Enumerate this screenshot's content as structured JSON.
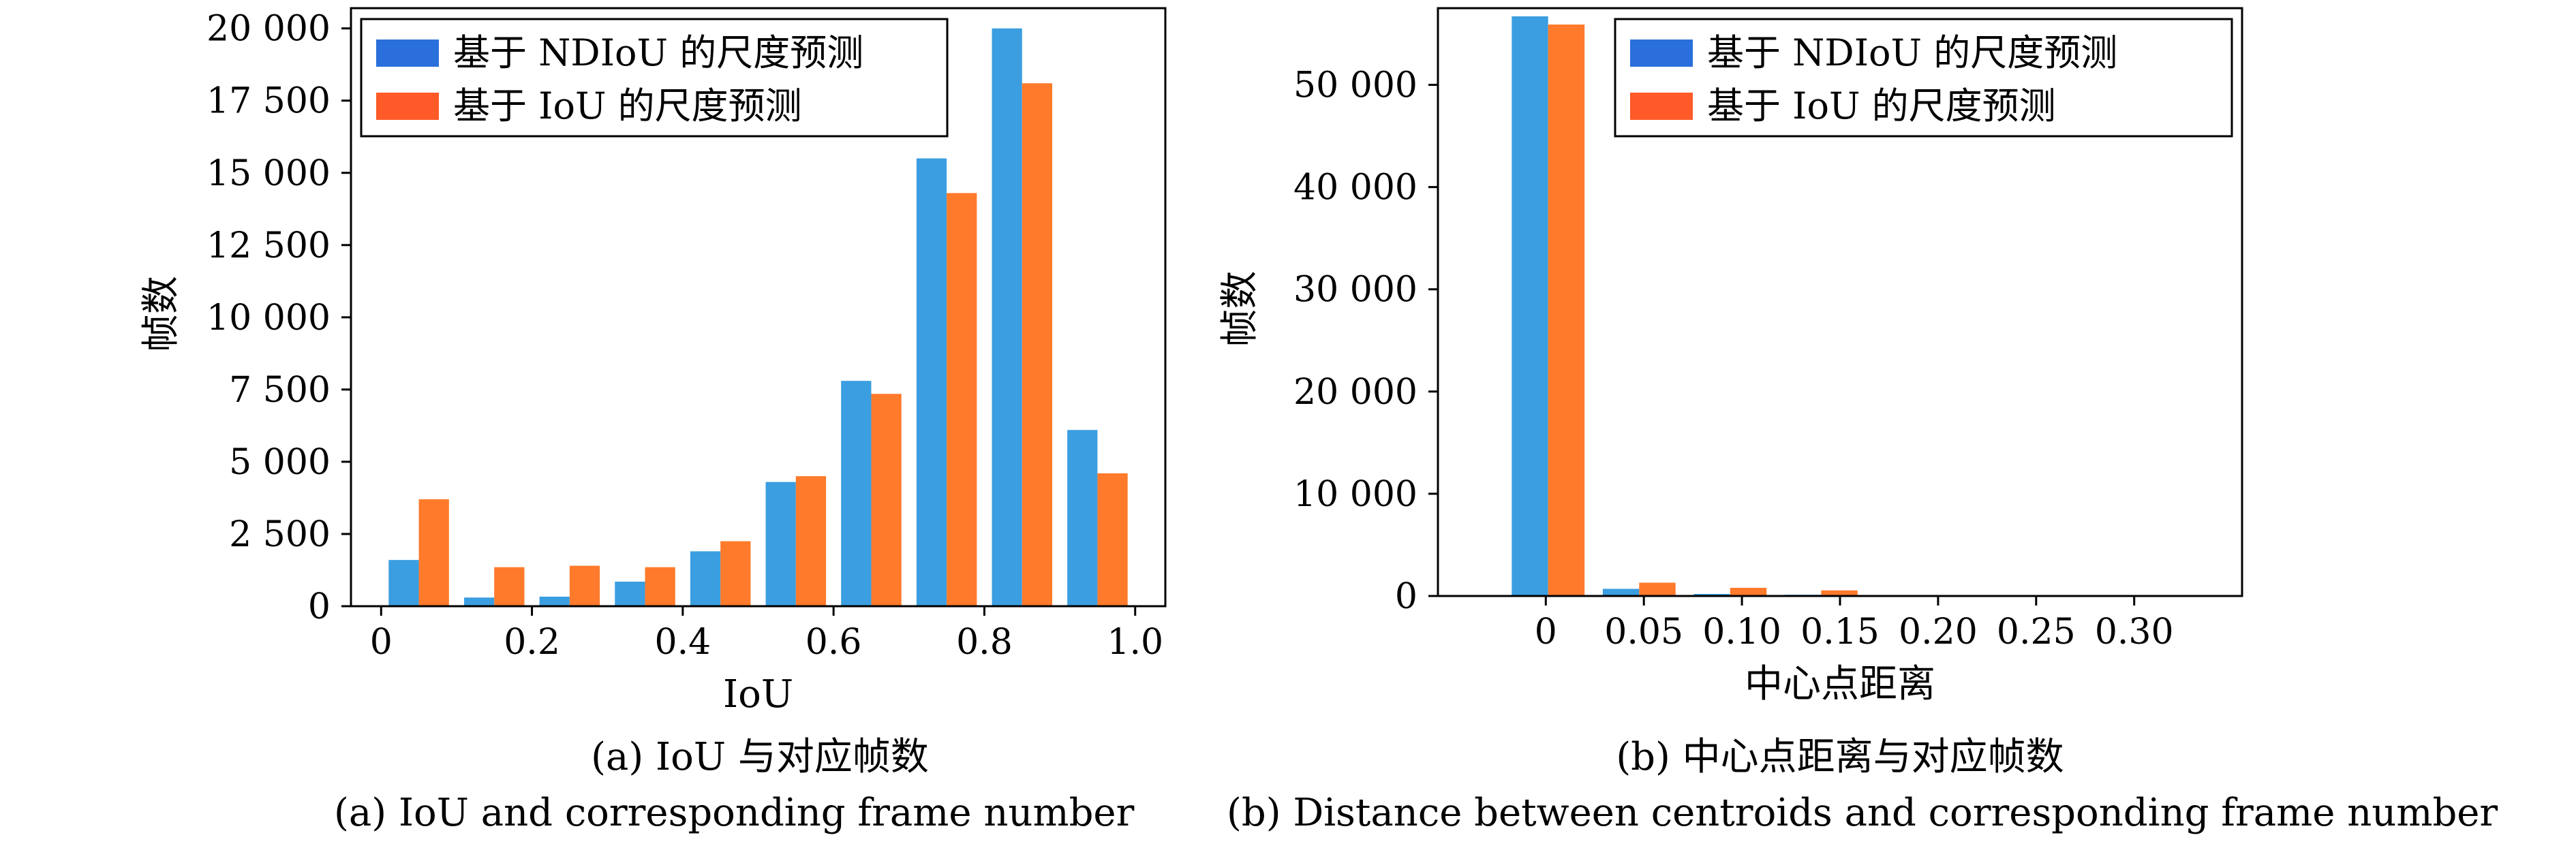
{
  "colors": {
    "ndiou": "#3b9ee0",
    "iou": "#ff7a2a",
    "legend_ndiou": "#2a6fdb",
    "legend_iou": "#ff5a28"
  },
  "chart_data": [
    {
      "type": "bar",
      "xlabel": "IoU",
      "ylabel": "帧数",
      "bin_edges": [
        0,
        0.1,
        0.2,
        0.3,
        0.4,
        0.5,
        0.6,
        0.7,
        0.8,
        0.9,
        1.0
      ],
      "xlim": [
        -0.04,
        1.04
      ],
      "ylim": [
        0,
        20700
      ],
      "xticks": [
        0,
        0.2,
        0.4,
        0.6,
        0.8,
        1.0
      ],
      "xtick_labels": [
        "0",
        "0.2",
        "0.4",
        "0.6",
        "0.8",
        "1.0"
      ],
      "yticks": [
        0,
        2500,
        5000,
        7500,
        10000,
        12500,
        15000,
        17500,
        20000
      ],
      "ytick_labels": [
        "0",
        "2 500",
        "5 000",
        "7 500",
        "10 000",
        "12 500",
        "15 000",
        "17 500",
        "20 000"
      ],
      "legend_position": "top-left",
      "series": [
        {
          "name": "基于 NDIoU 的尺度预测",
          "values": [
            1600,
            300,
            330,
            850,
            1900,
            4300,
            7800,
            15500,
            20000,
            6100
          ]
        },
        {
          "name": "基于 IoU 的尺度预测",
          "values": [
            3700,
            1350,
            1400,
            1350,
            2250,
            4500,
            7350,
            14300,
            18100,
            4600
          ]
        }
      ],
      "caption_cn": "(a) IoU 与对应帧数",
      "caption_en": "(a) IoU and corresponding frame number"
    },
    {
      "type": "bar",
      "xlabel": "中心点距离",
      "ylabel": "帧数",
      "bin_edges": [
        -0.022,
        0.0244,
        0.0708,
        0.1172,
        0.1636,
        0.21,
        0.2564,
        0.3028,
        0.3492
      ],
      "xlim": [
        -0.055,
        0.355
      ],
      "ylim": [
        0,
        57500
      ],
      "xticks": [
        0,
        0.05,
        0.1,
        0.15,
        0.2,
        0.25,
        0.3
      ],
      "xtick_labels": [
        "0",
        "0.05",
        "0.10",
        "0.15",
        "0.20",
        "0.25",
        "0.30"
      ],
      "yticks": [
        0,
        10000,
        20000,
        30000,
        40000,
        50000
      ],
      "ytick_labels": [
        "0",
        "10 000",
        "20 000",
        "30 000",
        "40 000",
        "50 000"
      ],
      "legend_position": "top-right",
      "series": [
        {
          "name": "基于 NDIoU 的尺度预测",
          "values": [
            56700,
            700,
            200,
            120,
            60,
            30,
            20,
            10
          ]
        },
        {
          "name": "基于 IoU 的尺度预测",
          "values": [
            55900,
            1300,
            800,
            550,
            100,
            40,
            20,
            10
          ]
        }
      ],
      "caption_cn": "(b) 中心点距离与对应帧数",
      "caption_en": "(b) Distance between centroids and corresponding frame number"
    }
  ]
}
